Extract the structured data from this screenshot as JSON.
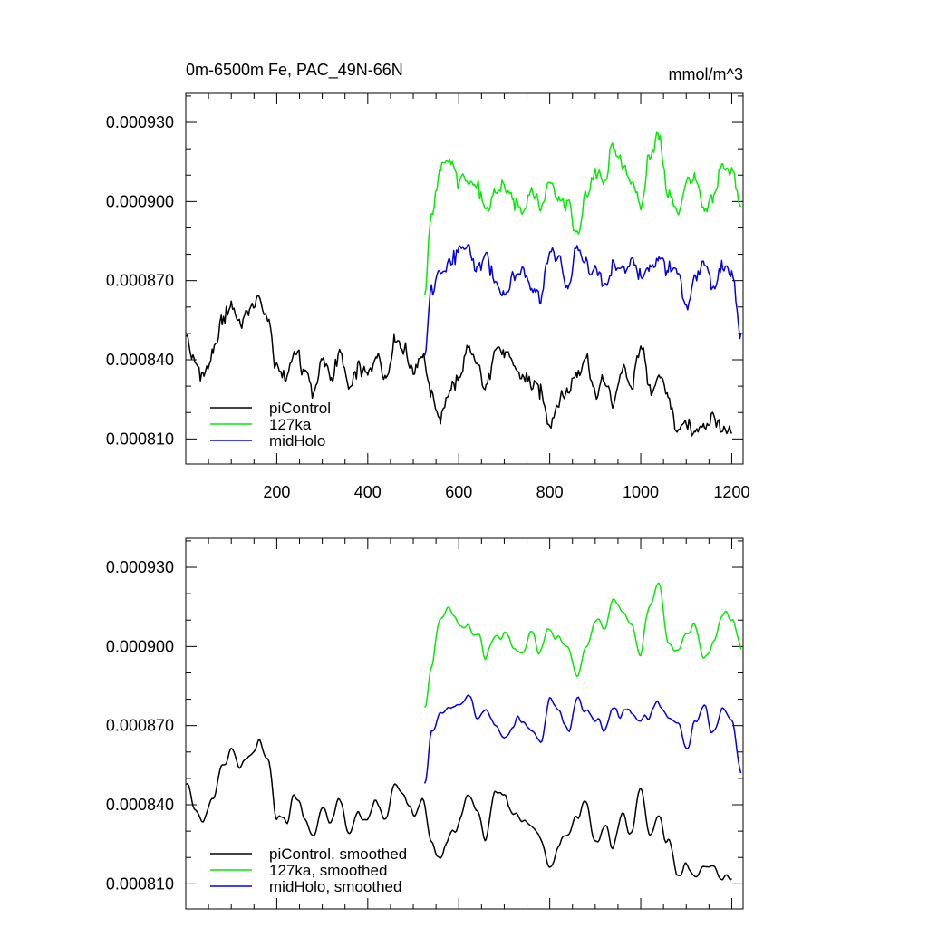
{
  "chart_data": [
    {
      "type": "line",
      "title": "0m-6500m Fe, PAC_49N-66N",
      "units": "mmol/m^3",
      "xlim": [
        0,
        1225
      ],
      "ylim": [
        0.0008005,
        0.000941
      ],
      "x_ticks": [
        200,
        400,
        600,
        800,
        1000,
        1200
      ],
      "x_tick_labels": [
        "200",
        "400",
        "600",
        "800",
        "1000",
        "1200"
      ],
      "y_ticks": [
        0.00081,
        0.00084,
        0.00087,
        0.0009,
        0.00093
      ],
      "y_tick_labels": [
        "0.000810",
        "0.000840",
        "0.000870",
        "0.000900",
        "0.000930"
      ],
      "legend_position": "bottom-left",
      "smooth": false,
      "series": [
        {
          "name": "piControl",
          "color": "#000000",
          "x": [
            1,
            20,
            40,
            60,
            80,
            100,
            120,
            140,
            160,
            180,
            200,
            220,
            240,
            260,
            280,
            300,
            320,
            340,
            360,
            380,
            400,
            420,
            440,
            460,
            480,
            500,
            520,
            540,
            560,
            580,
            600,
            620,
            640,
            660,
            680,
            700,
            720,
            740,
            760,
            780,
            800,
            820,
            840,
            860,
            880,
            900,
            920,
            940,
            960,
            980,
            1000,
            1020,
            1040,
            1060,
            1080,
            1100,
            1120,
            1140,
            1160,
            1180,
            1200
          ],
          "y": [
            0.000849,
            0.000838,
            0.000834,
            0.000842,
            0.000855,
            0.000861,
            0.000854,
            0.000859,
            0.000863,
            0.000856,
            0.000836,
            0.000833,
            0.000844,
            0.000836,
            0.000828,
            0.000839,
            0.000834,
            0.000842,
            0.000828,
            0.000837,
            0.000834,
            0.000842,
            0.000833,
            0.000848,
            0.000844,
            0.000836,
            0.000842,
            0.000826,
            0.000818,
            0.000829,
            0.000832,
            0.000844,
            0.000838,
            0.000828,
            0.000846,
            0.000842,
            0.000838,
            0.000834,
            0.000831,
            0.000828,
            0.000816,
            0.000825,
            0.000828,
            0.000835,
            0.000841,
            0.000826,
            0.000832,
            0.000824,
            0.000836,
            0.000829,
            0.000846,
            0.000828,
            0.000834,
            0.000826,
            0.000814,
            0.000816,
            0.000812,
            0.000816,
            0.000818,
            0.000812,
            0.000812
          ]
        },
        {
          "name": "127ka",
          "color": "#00ee00",
          "x": [
            525,
            540,
            560,
            580,
            600,
            620,
            640,
            660,
            680,
            700,
            720,
            740,
            760,
            780,
            800,
            820,
            840,
            860,
            880,
            900,
            920,
            940,
            960,
            980,
            1000,
            1020,
            1040,
            1060,
            1080,
            1100,
            1120,
            1140,
            1160,
            1180,
            1200,
            1220
          ],
          "y": [
            0.000866,
            0.000895,
            0.000912,
            0.000915,
            0.000908,
            0.000909,
            0.000906,
            0.000895,
            0.000904,
            0.000906,
            0.000899,
            0.000897,
            0.000905,
            0.000898,
            0.000908,
            0.000902,
            0.000899,
            0.000887,
            0.000902,
            0.000911,
            0.000907,
            0.000922,
            0.000913,
            0.000909,
            0.000897,
            0.000918,
            0.000925,
            0.000903,
            0.000896,
            0.000907,
            0.000908,
            0.000895,
            0.000902,
            0.000914,
            0.000912,
            0.000898
          ]
        },
        {
          "name": "midHolo",
          "color": "#0000ee",
          "x": [
            525,
            540,
            560,
            580,
            600,
            620,
            640,
            660,
            680,
            700,
            720,
            740,
            760,
            780,
            800,
            820,
            840,
            860,
            880,
            900,
            920,
            940,
            960,
            980,
            1000,
            1020,
            1040,
            1060,
            1080,
            1100,
            1120,
            1140,
            1160,
            1180,
            1200,
            1220
          ],
          "y": [
            0.000842,
            0.000866,
            0.000874,
            0.000877,
            0.00088,
            0.000883,
            0.000874,
            0.000879,
            0.00087,
            0.000866,
            0.000871,
            0.000874,
            0.000868,
            0.000864,
            0.00088,
            0.000878,
            0.000867,
            0.000882,
            0.000876,
            0.000873,
            0.000869,
            0.000875,
            0.000875,
            0.000877,
            0.000872,
            0.000874,
            0.000879,
            0.000874,
            0.000873,
            0.00086,
            0.000871,
            0.000878,
            0.000866,
            0.000876,
            0.000872,
            0.00085
          ]
        }
      ]
    },
    {
      "type": "line",
      "title": "",
      "units": "",
      "xlim": [
        0,
        1225
      ],
      "ylim": [
        0.0008005,
        0.000941
      ],
      "x_ticks": [
        200,
        400,
        600,
        800,
        1000,
        1200
      ],
      "x_tick_labels": [],
      "y_ticks": [
        0.00081,
        0.00084,
        0.00087,
        0.0009,
        0.00093
      ],
      "y_tick_labels": [
        "0.000810",
        "0.000840",
        "0.000870",
        "0.000900",
        "0.000930"
      ],
      "legend_position": "bottom-left",
      "smooth": true,
      "series": [
        {
          "name": "piControl, smoothed",
          "color": "#000000",
          "x": [
            1,
            20,
            40,
            60,
            80,
            100,
            120,
            140,
            160,
            180,
            200,
            220,
            240,
            260,
            280,
            300,
            320,
            340,
            360,
            380,
            400,
            420,
            440,
            460,
            480,
            500,
            520,
            540,
            560,
            580,
            600,
            620,
            640,
            660,
            680,
            700,
            720,
            740,
            760,
            780,
            800,
            820,
            840,
            860,
            880,
            900,
            920,
            940,
            960,
            980,
            1000,
            1020,
            1040,
            1060,
            1080,
            1100,
            1120,
            1140,
            1160,
            1180,
            1200
          ],
          "y": [
            0.000849,
            0.000838,
            0.000834,
            0.000842,
            0.000855,
            0.000861,
            0.000854,
            0.000859,
            0.000863,
            0.000856,
            0.000836,
            0.000833,
            0.000844,
            0.000836,
            0.000828,
            0.000839,
            0.000834,
            0.000842,
            0.000828,
            0.000837,
            0.000834,
            0.000842,
            0.000833,
            0.000848,
            0.000844,
            0.000836,
            0.000842,
            0.000826,
            0.000818,
            0.000829,
            0.000832,
            0.000844,
            0.000838,
            0.000828,
            0.000846,
            0.000842,
            0.000838,
            0.000834,
            0.000831,
            0.000828,
            0.000816,
            0.000825,
            0.000828,
            0.000835,
            0.000841,
            0.000826,
            0.000832,
            0.000824,
            0.000836,
            0.000829,
            0.000846,
            0.000828,
            0.000834,
            0.000826,
            0.000814,
            0.000816,
            0.000812,
            0.000816,
            0.000818,
            0.000812,
            0.000812
          ]
        },
        {
          "name": "127ka, smoothed",
          "color": "#00ee00",
          "x": [
            525,
            540,
            560,
            580,
            600,
            620,
            640,
            660,
            680,
            700,
            720,
            740,
            760,
            780,
            800,
            820,
            840,
            860,
            880,
            900,
            920,
            940,
            960,
            980,
            1000,
            1020,
            1040,
            1060,
            1080,
            1100,
            1120,
            1140,
            1160,
            1180,
            1200,
            1220
          ],
          "y": [
            0.000877,
            0.000893,
            0.00091,
            0.000914,
            0.000908,
            0.000908,
            0.000905,
            0.000896,
            0.000903,
            0.000905,
            0.000899,
            0.000897,
            0.000904,
            0.000898,
            0.000907,
            0.000902,
            0.000899,
            0.000888,
            0.000901,
            0.00091,
            0.000907,
            0.00092,
            0.000913,
            0.000909,
            0.000898,
            0.000917,
            0.000924,
            0.000903,
            0.000897,
            0.000906,
            0.000907,
            0.000896,
            0.000902,
            0.000913,
            0.000911,
            0.000899
          ]
        },
        {
          "name": "midHolo, smoothed",
          "color": "#0000ee",
          "x": [
            525,
            540,
            560,
            580,
            600,
            620,
            640,
            660,
            680,
            700,
            720,
            740,
            760,
            780,
            800,
            820,
            840,
            860,
            880,
            900,
            920,
            940,
            960,
            980,
            1000,
            1020,
            1040,
            1060,
            1080,
            1100,
            1120,
            1140,
            1160,
            1180,
            1200,
            1220
          ],
          "y": [
            0.000849,
            0.000866,
            0.000874,
            0.000876,
            0.000879,
            0.000882,
            0.000873,
            0.000878,
            0.00087,
            0.000866,
            0.000871,
            0.000873,
            0.000868,
            0.000865,
            0.000879,
            0.000877,
            0.000867,
            0.000881,
            0.000876,
            0.000873,
            0.000869,
            0.000875,
            0.000874,
            0.000876,
            0.000872,
            0.000874,
            0.000878,
            0.000874,
            0.000872,
            0.000861,
            0.000871,
            0.000877,
            0.000867,
            0.000875,
            0.000871,
            0.000852
          ]
        }
      ]
    }
  ]
}
